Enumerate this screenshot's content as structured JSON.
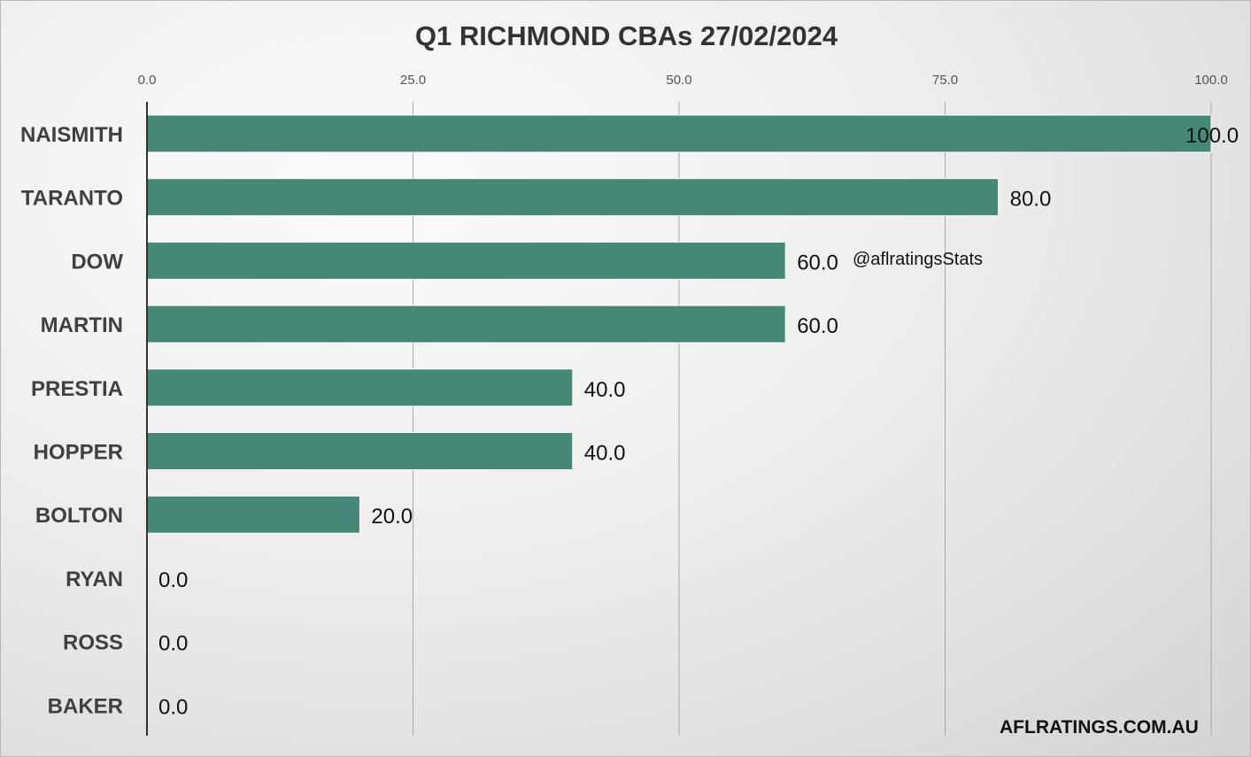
{
  "chart_data": {
    "type": "bar",
    "orientation": "horizontal",
    "title": "Q1 RICHMOND CBAs 27/02/2024",
    "categories": [
      "NAISMITH",
      "TARANTO",
      "DOW",
      "MARTIN",
      "PRESTIA",
      "HOPPER",
      "BOLTON",
      "RYAN",
      "ROSS",
      "BAKER"
    ],
    "values": [
      100.0,
      80.0,
      60.0,
      60.0,
      40.0,
      40.0,
      20.0,
      0.0,
      0.0,
      0.0
    ],
    "xlim": [
      0,
      100
    ],
    "xticks": [
      0,
      25,
      50,
      75,
      100
    ],
    "x_axis_position": "top",
    "grid": "vertical",
    "legend": "none",
    "bar_color": "#468877",
    "annotations": [
      "@aflratingsStats",
      "AFLRATINGS.COM.AU"
    ]
  }
}
